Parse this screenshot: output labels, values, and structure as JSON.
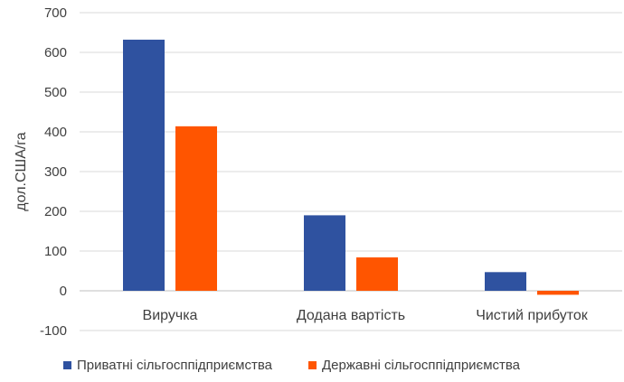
{
  "chart_data": {
    "type": "bar",
    "title": "",
    "xlabel": "",
    "ylabel": "дол.США/га",
    "ylim": [
      -100,
      700
    ],
    "yticks": [
      -100,
      0,
      100,
      200,
      300,
      400,
      500,
      600,
      700
    ],
    "grid": true,
    "legend_position": "bottom",
    "categories": [
      "Виручка",
      "Додана вартість",
      "Чистий прибуток"
    ],
    "series": [
      {
        "name": "Приватні сільгосппідприємства",
        "color": "#2F52A0",
        "values": [
          632,
          190,
          47
        ]
      },
      {
        "name": "Державні сільгосппідприємства",
        "color": "#FF5500",
        "values": [
          414,
          84,
          -10
        ]
      }
    ]
  }
}
